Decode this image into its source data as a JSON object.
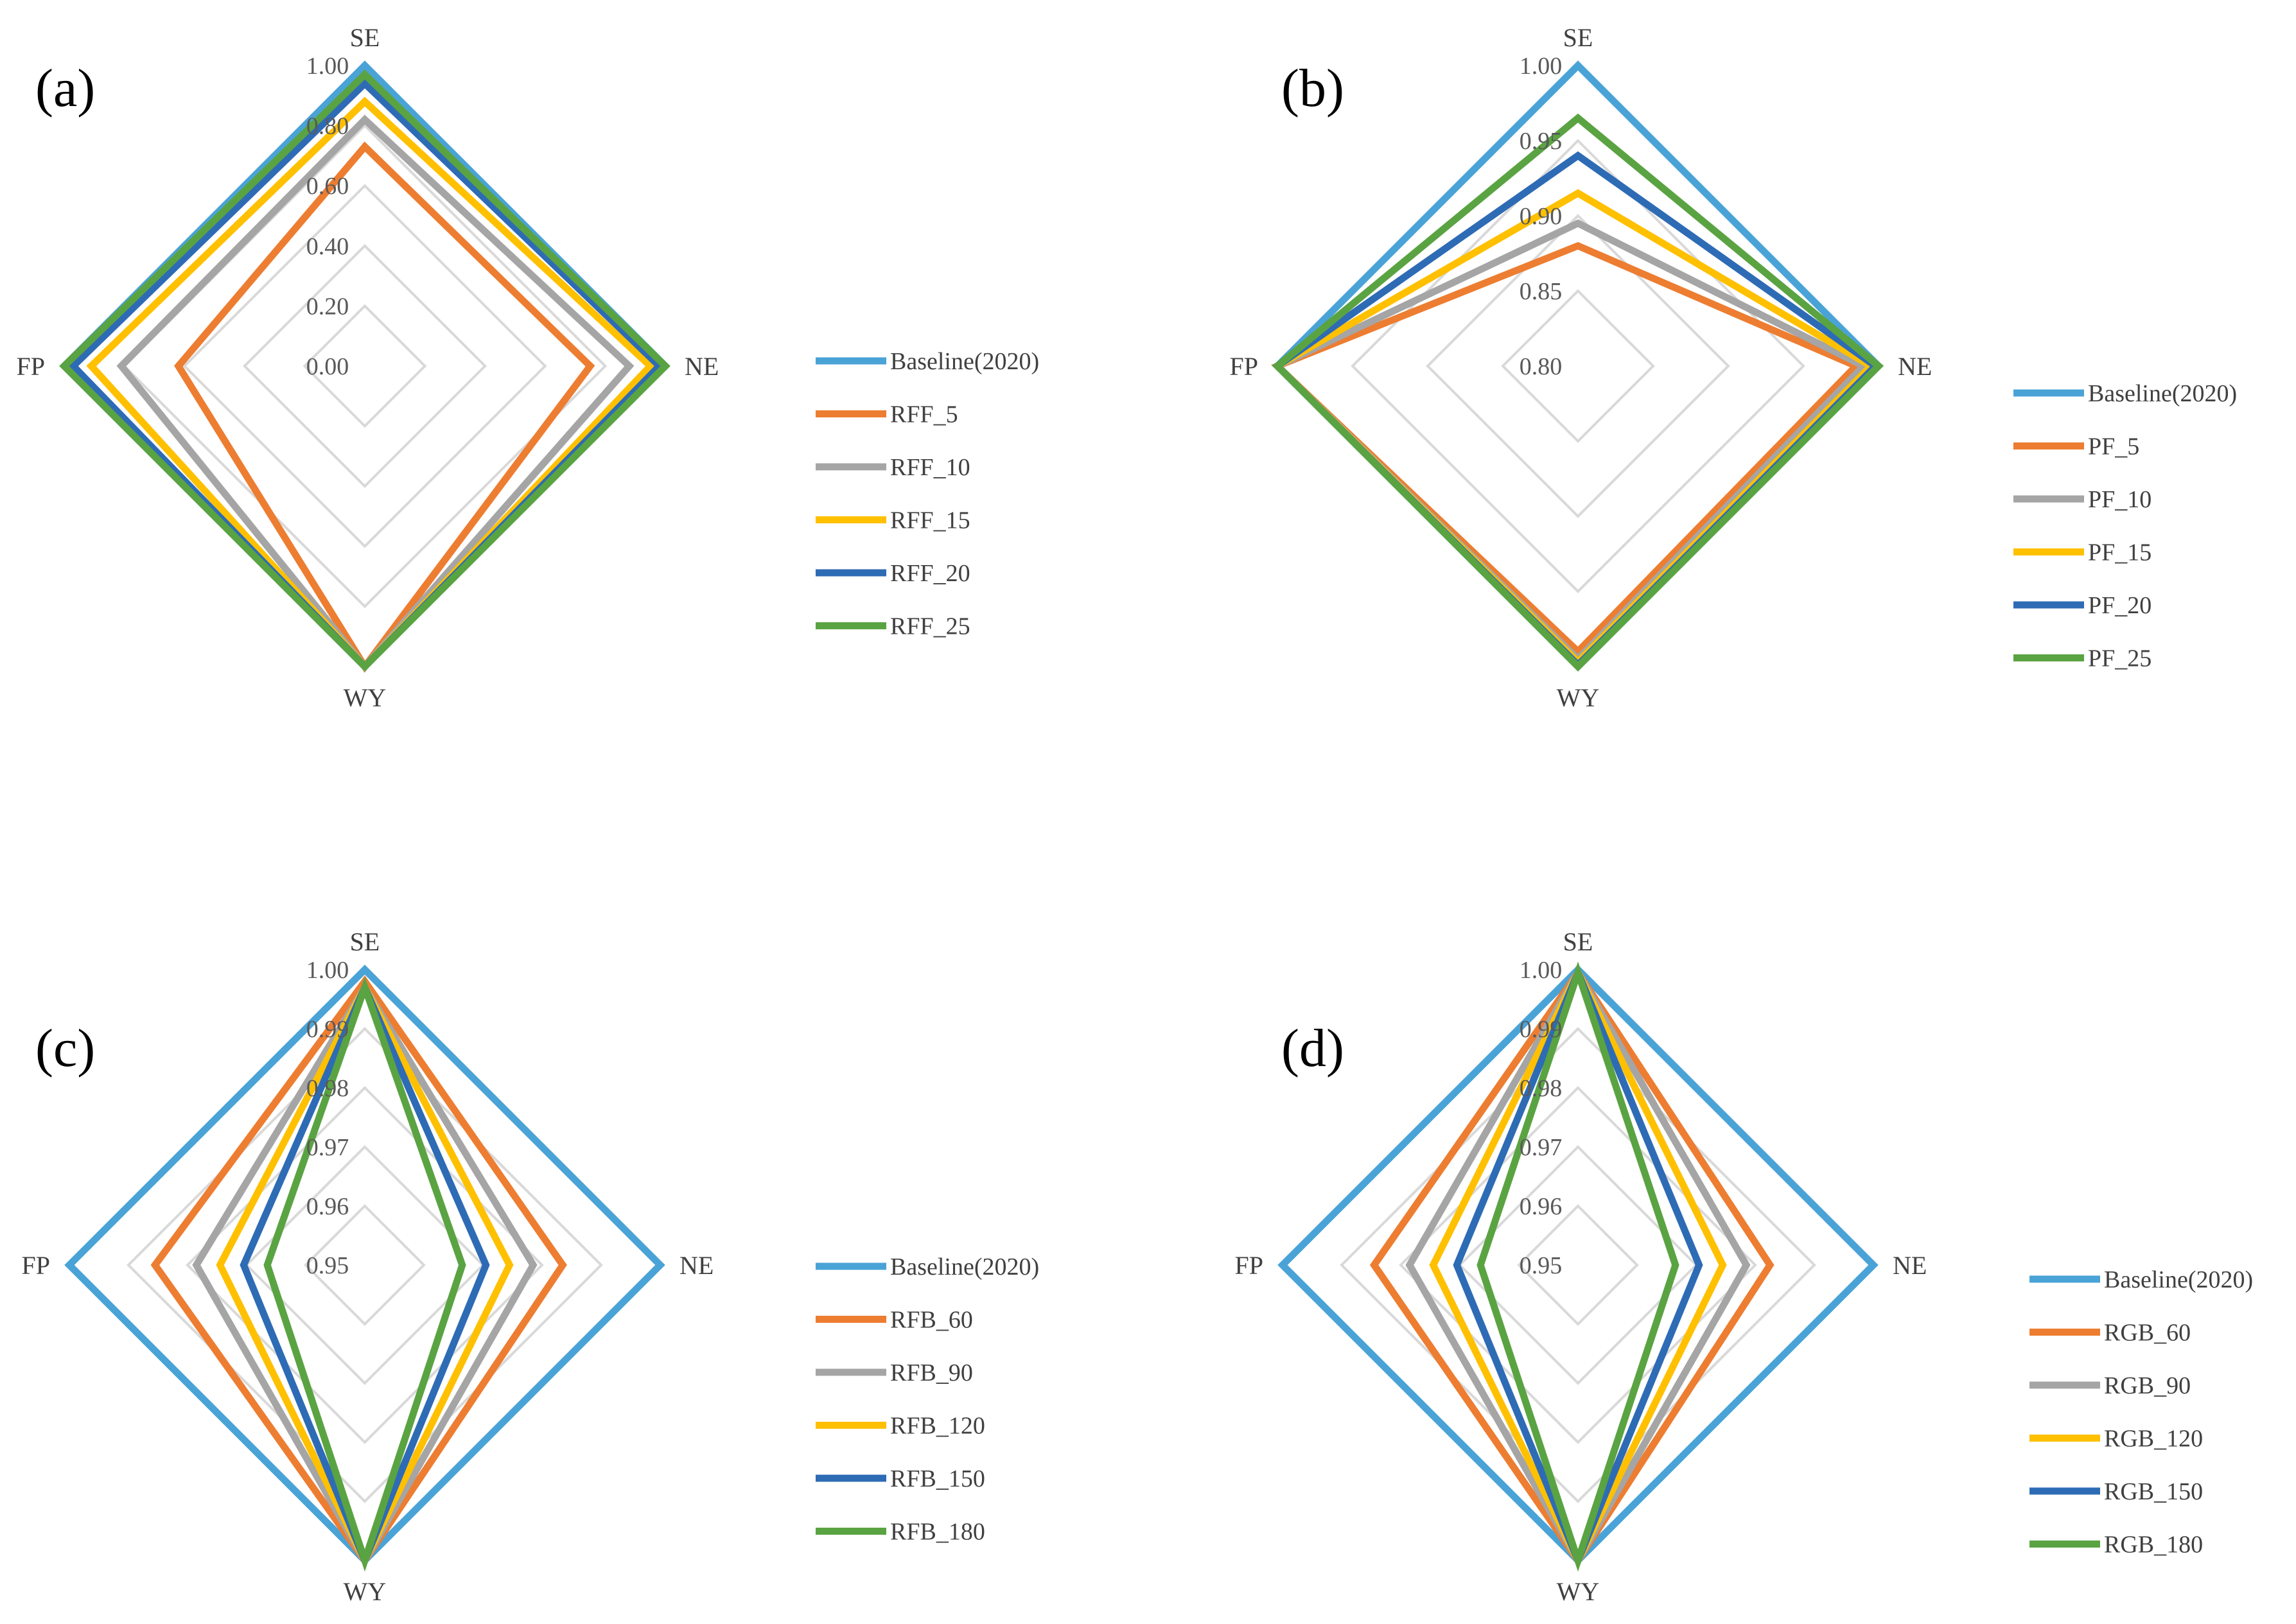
{
  "figure": {
    "background": "#ffffff",
    "grid_color": "#d9d9d9"
  },
  "chart_data": [
    {
      "type": "radar",
      "panel_label": "(a)",
      "axes": [
        "SE",
        "NE",
        "WY",
        "FP"
      ],
      "rlim": [
        0.0,
        1.0
      ],
      "ticks": [
        0.0,
        0.2,
        0.4,
        0.6,
        0.8,
        1.0
      ],
      "tick_labels": [
        "0.00",
        "0.20",
        "0.40",
        "0.60",
        "0.80",
        "1.00"
      ],
      "series": [
        {
          "name": "Baseline(2020)",
          "color": "#4aa3d6",
          "values": [
            1.0,
            1.0,
            1.0,
            1.0
          ]
        },
        {
          "name": "RFF_5",
          "color": "#ed7d31",
          "values": [
            0.73,
            0.75,
            1.0,
            0.62
          ]
        },
        {
          "name": "RFF_10",
          "color": "#a5a5a5",
          "values": [
            0.82,
            0.88,
            1.0,
            0.81
          ]
        },
        {
          "name": "RFF_15",
          "color": "#ffc000",
          "values": [
            0.88,
            0.95,
            1.0,
            0.91
          ]
        },
        {
          "name": "RFF_20",
          "color": "#2e6bb5",
          "values": [
            0.94,
            0.98,
            1.0,
            0.97
          ]
        },
        {
          "name": "RFF_25",
          "color": "#5aa342",
          "values": [
            0.97,
            1.0,
            1.0,
            1.0
          ]
        }
      ]
    },
    {
      "type": "radar",
      "panel_label": "(b)",
      "axes": [
        "SE",
        "NE",
        "WY",
        "FP"
      ],
      "rlim": [
        0.8,
        1.0
      ],
      "ticks": [
        0.8,
        0.85,
        0.9,
        0.95,
        1.0
      ],
      "tick_labels": [
        "0.80",
        "0.85",
        "0.90",
        "0.95",
        "1.00"
      ],
      "series": [
        {
          "name": "Baseline(2020)",
          "color": "#4aa3d6",
          "values": [
            1.0,
            1.0,
            1.0,
            1.0
          ]
        },
        {
          "name": "PF_5",
          "color": "#ed7d31",
          "values": [
            0.88,
            0.985,
            0.99,
            1.0
          ]
        },
        {
          "name": "PF_10",
          "color": "#a5a5a5",
          "values": [
            0.895,
            0.99,
            0.995,
            1.0
          ]
        },
        {
          "name": "PF_15",
          "color": "#ffc000",
          "values": [
            0.915,
            0.995,
            0.997,
            1.0
          ]
        },
        {
          "name": "PF_20",
          "color": "#2e6bb5",
          "values": [
            0.94,
            0.998,
            0.999,
            1.0
          ]
        },
        {
          "name": "PF_25",
          "color": "#5aa342",
          "values": [
            0.965,
            1.0,
            1.0,
            1.0
          ]
        }
      ]
    },
    {
      "type": "radar",
      "panel_label": "(c)",
      "axes": [
        "SE",
        "NE",
        "WY",
        "FP"
      ],
      "rlim": [
        0.95,
        1.0
      ],
      "ticks": [
        0.95,
        0.96,
        0.97,
        0.98,
        0.99,
        1.0
      ],
      "tick_labels": [
        "0.95",
        "0.96",
        "0.97",
        "0.98",
        "0.99",
        "1.00"
      ],
      "series": [
        {
          "name": "Baseline(2020)",
          "color": "#4aa3d6",
          "values": [
            1.0,
            1.0,
            1.0,
            1.0
          ]
        },
        {
          "name": "RFB_60",
          "color": "#ed7d31",
          "values": [
            0.998,
            0.9835,
            1.0,
            0.9855
          ]
        },
        {
          "name": "RFB_90",
          "color": "#a5a5a5",
          "values": [
            0.997,
            0.9785,
            1.0,
            0.9785
          ]
        },
        {
          "name": "RFB_120",
          "color": "#ffc000",
          "values": [
            0.997,
            0.9745,
            1.0,
            0.9745
          ]
        },
        {
          "name": "RFB_150",
          "color": "#2e6bb5",
          "values": [
            0.997,
            0.9705,
            1.0,
            0.9705
          ]
        },
        {
          "name": "RFB_180",
          "color": "#5aa342",
          "values": [
            0.997,
            0.9665,
            1.0,
            0.9665
          ]
        }
      ]
    },
    {
      "type": "radar",
      "panel_label": "(d)",
      "axes": [
        "SE",
        "NE",
        "WY",
        "FP"
      ],
      "rlim": [
        0.95,
        1.0
      ],
      "ticks": [
        0.95,
        0.96,
        0.97,
        0.98,
        0.99,
        1.0
      ],
      "tick_labels": [
        "0.95",
        "0.96",
        "0.97",
        "0.98",
        "0.99",
        "1.00"
      ],
      "series": [
        {
          "name": "Baseline(2020)",
          "color": "#4aa3d6",
          "values": [
            1.0,
            1.0,
            1.0,
            1.0
          ]
        },
        {
          "name": "RGB_60",
          "color": "#ed7d31",
          "values": [
            0.9995,
            0.9825,
            1.0,
            0.9845
          ]
        },
        {
          "name": "RGB_90",
          "color": "#a5a5a5",
          "values": [
            0.9995,
            0.9785,
            1.0,
            0.9785
          ]
        },
        {
          "name": "RGB_120",
          "color": "#ffc000",
          "values": [
            0.9995,
            0.9745,
            1.0,
            0.9745
          ]
        },
        {
          "name": "RGB_150",
          "color": "#2e6bb5",
          "values": [
            0.9995,
            0.9705,
            1.0,
            0.9705
          ]
        },
        {
          "name": "RGB_180",
          "color": "#5aa342",
          "values": [
            0.9995,
            0.9665,
            1.0,
            0.9665
          ]
        }
      ]
    }
  ]
}
